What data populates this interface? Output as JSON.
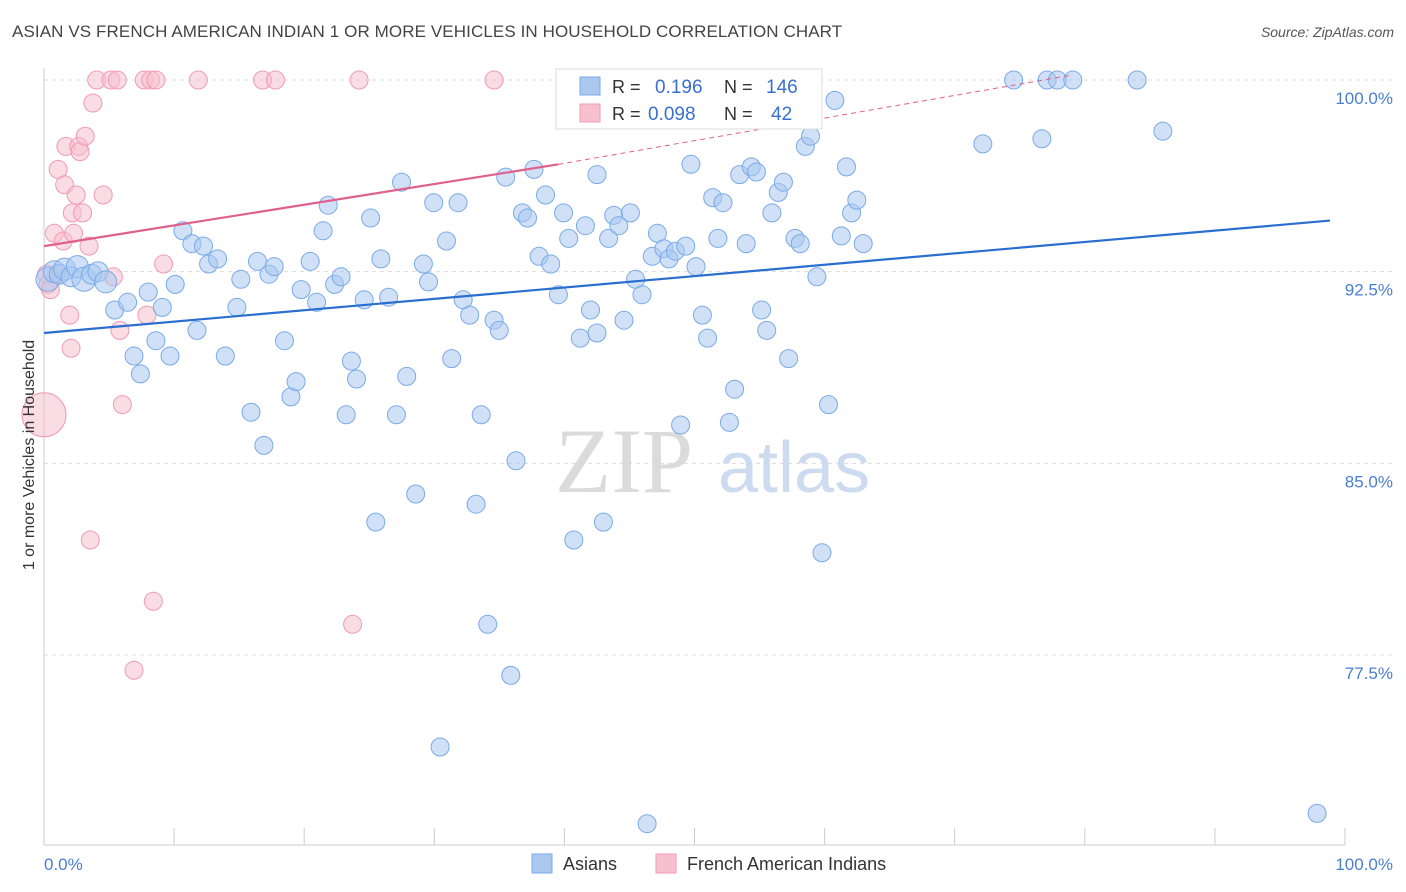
{
  "title": "ASIAN VS FRENCH AMERICAN INDIAN 1 OR MORE VEHICLES IN HOUSEHOLD CORRELATION CHART",
  "source": "Source: ZipAtlas.com",
  "watermark": {
    "zip": "ZIP",
    "atlas": "atlas"
  },
  "colors": {
    "asian": "#7aaae8",
    "asian_fill": "#aac8f0",
    "asian_line": "#2a6fd0",
    "french": "#f19ab4",
    "french_fill": "#f6c0d0",
    "french_line": "#e0608c",
    "axis_text": "#4a7ed0"
  },
  "legend_top": {
    "rows": [
      {
        "r_label": "R =",
        "r_value": "0.196",
        "n_label": "N =",
        "n_value": "146"
      },
      {
        "r_label": "R =",
        "r_value": "0.098",
        "n_label": "N =",
        "n_value": "42"
      }
    ]
  },
  "legend_bottom": [
    "Asians",
    "French American Indians"
  ],
  "chart_data": {
    "type": "scatter",
    "title": "ASIAN VS FRENCH AMERICAN INDIAN 1 OR MORE VEHICLES IN HOUSEHOLD CORRELATION CHART",
    "xlabel": "",
    "ylabel": "1 or more Vehicles in Household",
    "xlim": [
      0,
      100
    ],
    "ylim": [
      70.5,
      101.5
    ],
    "x_tick_labels": [
      "0.0%",
      "100.0%"
    ],
    "y_ticks": [
      77.5,
      85.0,
      92.5,
      100.0
    ],
    "y_tick_labels": [
      "77.5%",
      "85.0%",
      "92.5%",
      "100.0%"
    ],
    "grid": true,
    "series": [
      {
        "name": "Asians",
        "R": 0.196,
        "N": 146,
        "trend": {
          "x": [
            0,
            100
          ],
          "y": [
            90.1,
            94.5
          ]
        },
        "points": [
          [
            0.3,
            92.2,
            12
          ],
          [
            0.8,
            92.5,
            11
          ],
          [
            1.2,
            92.4,
            10
          ],
          [
            1.6,
            92.6,
            11
          ],
          [
            2.1,
            92.3,
            10
          ],
          [
            2.6,
            92.7,
            11
          ],
          [
            3.1,
            92.2,
            12
          ],
          [
            3.7,
            92.4,
            10
          ],
          [
            4.2,
            92.5,
            10
          ],
          [
            4.8,
            92.1,
            11
          ],
          [
            5.5,
            91.0,
            9
          ],
          [
            6.5,
            91.3,
            9
          ],
          [
            7.0,
            89.2,
            9
          ],
          [
            7.5,
            88.5,
            9
          ],
          [
            8.1,
            91.7,
            9
          ],
          [
            8.7,
            89.8,
            9
          ],
          [
            9.2,
            91.1,
            9
          ],
          [
            9.8,
            89.2,
            9
          ],
          [
            10.2,
            92.0,
            9
          ],
          [
            10.8,
            94.1,
            9
          ],
          [
            11.5,
            93.6,
            9
          ],
          [
            11.9,
            90.2,
            9
          ],
          [
            12.4,
            93.5,
            9
          ],
          [
            12.8,
            92.8,
            9
          ],
          [
            13.5,
            93.0,
            9
          ],
          [
            14.1,
            89.2,
            9
          ],
          [
            15.0,
            91.1,
            9
          ],
          [
            15.3,
            92.2,
            9
          ],
          [
            16.1,
            87.0,
            9
          ],
          [
            16.6,
            92.9,
            9
          ],
          [
            17.1,
            85.7,
            9
          ],
          [
            17.5,
            92.4,
            9
          ],
          [
            17.9,
            92.7,
            9
          ],
          [
            18.7,
            89.8,
            9
          ],
          [
            19.2,
            87.6,
            9
          ],
          [
            19.6,
            88.2,
            9
          ],
          [
            20.0,
            91.8,
            9
          ],
          [
            20.7,
            92.9,
            9
          ],
          [
            21.2,
            91.3,
            9
          ],
          [
            21.7,
            94.1,
            9
          ],
          [
            22.1,
            95.1,
            9
          ],
          [
            22.6,
            92.0,
            9
          ],
          [
            23.1,
            92.3,
            9
          ],
          [
            23.5,
            86.9,
            9
          ],
          [
            23.9,
            89.0,
            9
          ],
          [
            24.3,
            88.3,
            9
          ],
          [
            24.9,
            91.4,
            9
          ],
          [
            25.4,
            94.6,
            9
          ],
          [
            25.8,
            82.7,
            9
          ],
          [
            26.2,
            93.0,
            9
          ],
          [
            26.8,
            91.5,
            9
          ],
          [
            27.4,
            86.9,
            9
          ],
          [
            27.8,
            96.0,
            9
          ],
          [
            28.2,
            88.4,
            9
          ],
          [
            28.9,
            83.8,
            9
          ],
          [
            29.5,
            92.8,
            9
          ],
          [
            29.9,
            92.1,
            9
          ],
          [
            30.3,
            95.2,
            9
          ],
          [
            30.8,
            73.9,
            9
          ],
          [
            31.3,
            93.7,
            9
          ],
          [
            31.7,
            89.1,
            9
          ],
          [
            32.2,
            95.2,
            9
          ],
          [
            32.6,
            91.4,
            9
          ],
          [
            33.1,
            90.8,
            9
          ],
          [
            33.6,
            83.4,
            9
          ],
          [
            34.0,
            86.9,
            9
          ],
          [
            34.5,
            78.7,
            9
          ],
          [
            35.0,
            90.6,
            9
          ],
          [
            35.4,
            90.2,
            9
          ],
          [
            35.9,
            96.2,
            9
          ],
          [
            36.3,
            76.7,
            9
          ],
          [
            36.7,
            85.1,
            9
          ],
          [
            37.2,
            94.8,
            9
          ],
          [
            37.6,
            94.6,
            9
          ],
          [
            38.1,
            96.5,
            9
          ],
          [
            38.5,
            93.1,
            9
          ],
          [
            39.0,
            95.5,
            9
          ],
          [
            39.4,
            92.8,
            9
          ],
          [
            40.0,
            91.6,
            9
          ],
          [
            40.4,
            94.8,
            9
          ],
          [
            40.8,
            93.8,
            9
          ],
          [
            41.2,
            82.0,
            9
          ],
          [
            41.7,
            89.9,
            9
          ],
          [
            42.1,
            94.3,
            9
          ],
          [
            42.5,
            91.0,
            9
          ],
          [
            43.0,
            90.1,
            9
          ],
          [
            43.5,
            82.7,
            9
          ],
          [
            43.9,
            93.8,
            9
          ],
          [
            44.3,
            94.7,
            9
          ],
          [
            44.7,
            94.3,
            9
          ],
          [
            45.1,
            90.6,
            9
          ],
          [
            45.6,
            94.8,
            9
          ],
          [
            46.0,
            92.2,
            9
          ],
          [
            46.5,
            91.6,
            9
          ],
          [
            46.9,
            70.9,
            9
          ],
          [
            47.3,
            93.1,
            9
          ],
          [
            47.7,
            94.0,
            9
          ],
          [
            48.2,
            93.4,
            9
          ],
          [
            48.6,
            93.0,
            9
          ],
          [
            49.1,
            93.3,
            9
          ],
          [
            49.5,
            86.5,
            9
          ],
          [
            49.9,
            93.5,
            9
          ],
          [
            50.3,
            96.7,
            9
          ],
          [
            50.7,
            92.7,
            9
          ],
          [
            51.2,
            90.8,
            9
          ],
          [
            51.6,
            89.9,
            9
          ],
          [
            52.0,
            95.4,
            9
          ],
          [
            52.4,
            93.8,
            9
          ],
          [
            52.8,
            95.2,
            9
          ],
          [
            53.3,
            86.6,
            9
          ],
          [
            53.7,
            87.9,
            9
          ],
          [
            54.1,
            96.3,
            9
          ],
          [
            54.6,
            93.6,
            9
          ],
          [
            55.0,
            96.6,
            9
          ],
          [
            55.4,
            96.4,
            9
          ],
          [
            55.8,
            91.0,
            9
          ],
          [
            56.2,
            90.2,
            9
          ],
          [
            56.6,
            94.8,
            9
          ],
          [
            57.1,
            95.6,
            9
          ],
          [
            57.5,
            96.0,
            9
          ],
          [
            57.9,
            89.1,
            9
          ],
          [
            58.4,
            93.8,
            9
          ],
          [
            58.8,
            93.6,
            9
          ],
          [
            59.2,
            97.4,
            9
          ],
          [
            59.6,
            97.8,
            9
          ],
          [
            60.1,
            92.3,
            9
          ],
          [
            60.5,
            81.5,
            9
          ],
          [
            61.0,
            87.3,
            9
          ],
          [
            61.5,
            99.2,
            9
          ],
          [
            62.0,
            93.9,
            9
          ],
          [
            62.4,
            96.6,
            9
          ],
          [
            62.8,
            94.8,
            9
          ],
          [
            63.2,
            95.3,
            9
          ],
          [
            63.7,
            93.6,
            9
          ],
          [
            73.0,
            97.5,
            9
          ],
          [
            75.4,
            100.0,
            9
          ],
          [
            77.6,
            97.7,
            9
          ],
          [
            78.0,
            100.0,
            9
          ],
          [
            78.8,
            100.0,
            9
          ],
          [
            80.0,
            100.0,
            9
          ],
          [
            85.0,
            100.0,
            9
          ],
          [
            87.0,
            98.0,
            9
          ],
          [
            99.0,
            71.3,
            9
          ],
          [
            43.0,
            96.3,
            9
          ]
        ]
      },
      {
        "name": "French American Indians",
        "R": 0.098,
        "N": 42,
        "trend": {
          "x": [
            0,
            40
          ],
          "y": [
            93.5,
            96.7
          ]
        },
        "trend_dashed": {
          "x": [
            40,
            80
          ],
          "y": [
            96.7,
            100.2
          ]
        },
        "points": [
          [
            0.0,
            86.9,
            22
          ],
          [
            0.2,
            92.4,
            9
          ],
          [
            0.3,
            92.0,
            9
          ],
          [
            0.5,
            91.8,
            9
          ],
          [
            0.8,
            94.0,
            9
          ],
          [
            1.1,
            96.5,
            9
          ],
          [
            1.3,
            92.4,
            9
          ],
          [
            1.5,
            93.7,
            9
          ],
          [
            1.6,
            95.9,
            9
          ],
          [
            1.7,
            97.4,
            9
          ],
          [
            2.0,
            90.8,
            9
          ],
          [
            2.1,
            89.5,
            9
          ],
          [
            2.2,
            94.8,
            9
          ],
          [
            2.3,
            94.0,
            9
          ],
          [
            2.5,
            95.5,
            9
          ],
          [
            2.7,
            97.4,
            9
          ],
          [
            2.8,
            97.2,
            9
          ],
          [
            3.0,
            94.8,
            9
          ],
          [
            3.2,
            97.8,
            9
          ],
          [
            3.5,
            93.5,
            9
          ],
          [
            3.6,
            82.0,
            9
          ],
          [
            3.8,
            99.1,
            9
          ],
          [
            4.1,
            100.0,
            9
          ],
          [
            4.6,
            95.5,
            9
          ],
          [
            5.2,
            100.0,
            9
          ],
          [
            5.4,
            92.3,
            9
          ],
          [
            5.7,
            100.0,
            9
          ],
          [
            5.9,
            90.2,
            9
          ],
          [
            6.1,
            87.3,
            9
          ],
          [
            7.0,
            76.9,
            9
          ],
          [
            7.8,
            100.0,
            9
          ],
          [
            8.0,
            90.8,
            9
          ],
          [
            8.3,
            100.0,
            9
          ],
          [
            8.5,
            79.6,
            9
          ],
          [
            8.7,
            100.0,
            9
          ],
          [
            9.3,
            92.8,
            9
          ],
          [
            12.0,
            100.0,
            9
          ],
          [
            17.0,
            100.0,
            9
          ],
          [
            18.0,
            100.0,
            9
          ],
          [
            24.0,
            78.7,
            9
          ],
          [
            24.5,
            100.0,
            9
          ],
          [
            35.0,
            100.0,
            9
          ]
        ]
      }
    ]
  }
}
